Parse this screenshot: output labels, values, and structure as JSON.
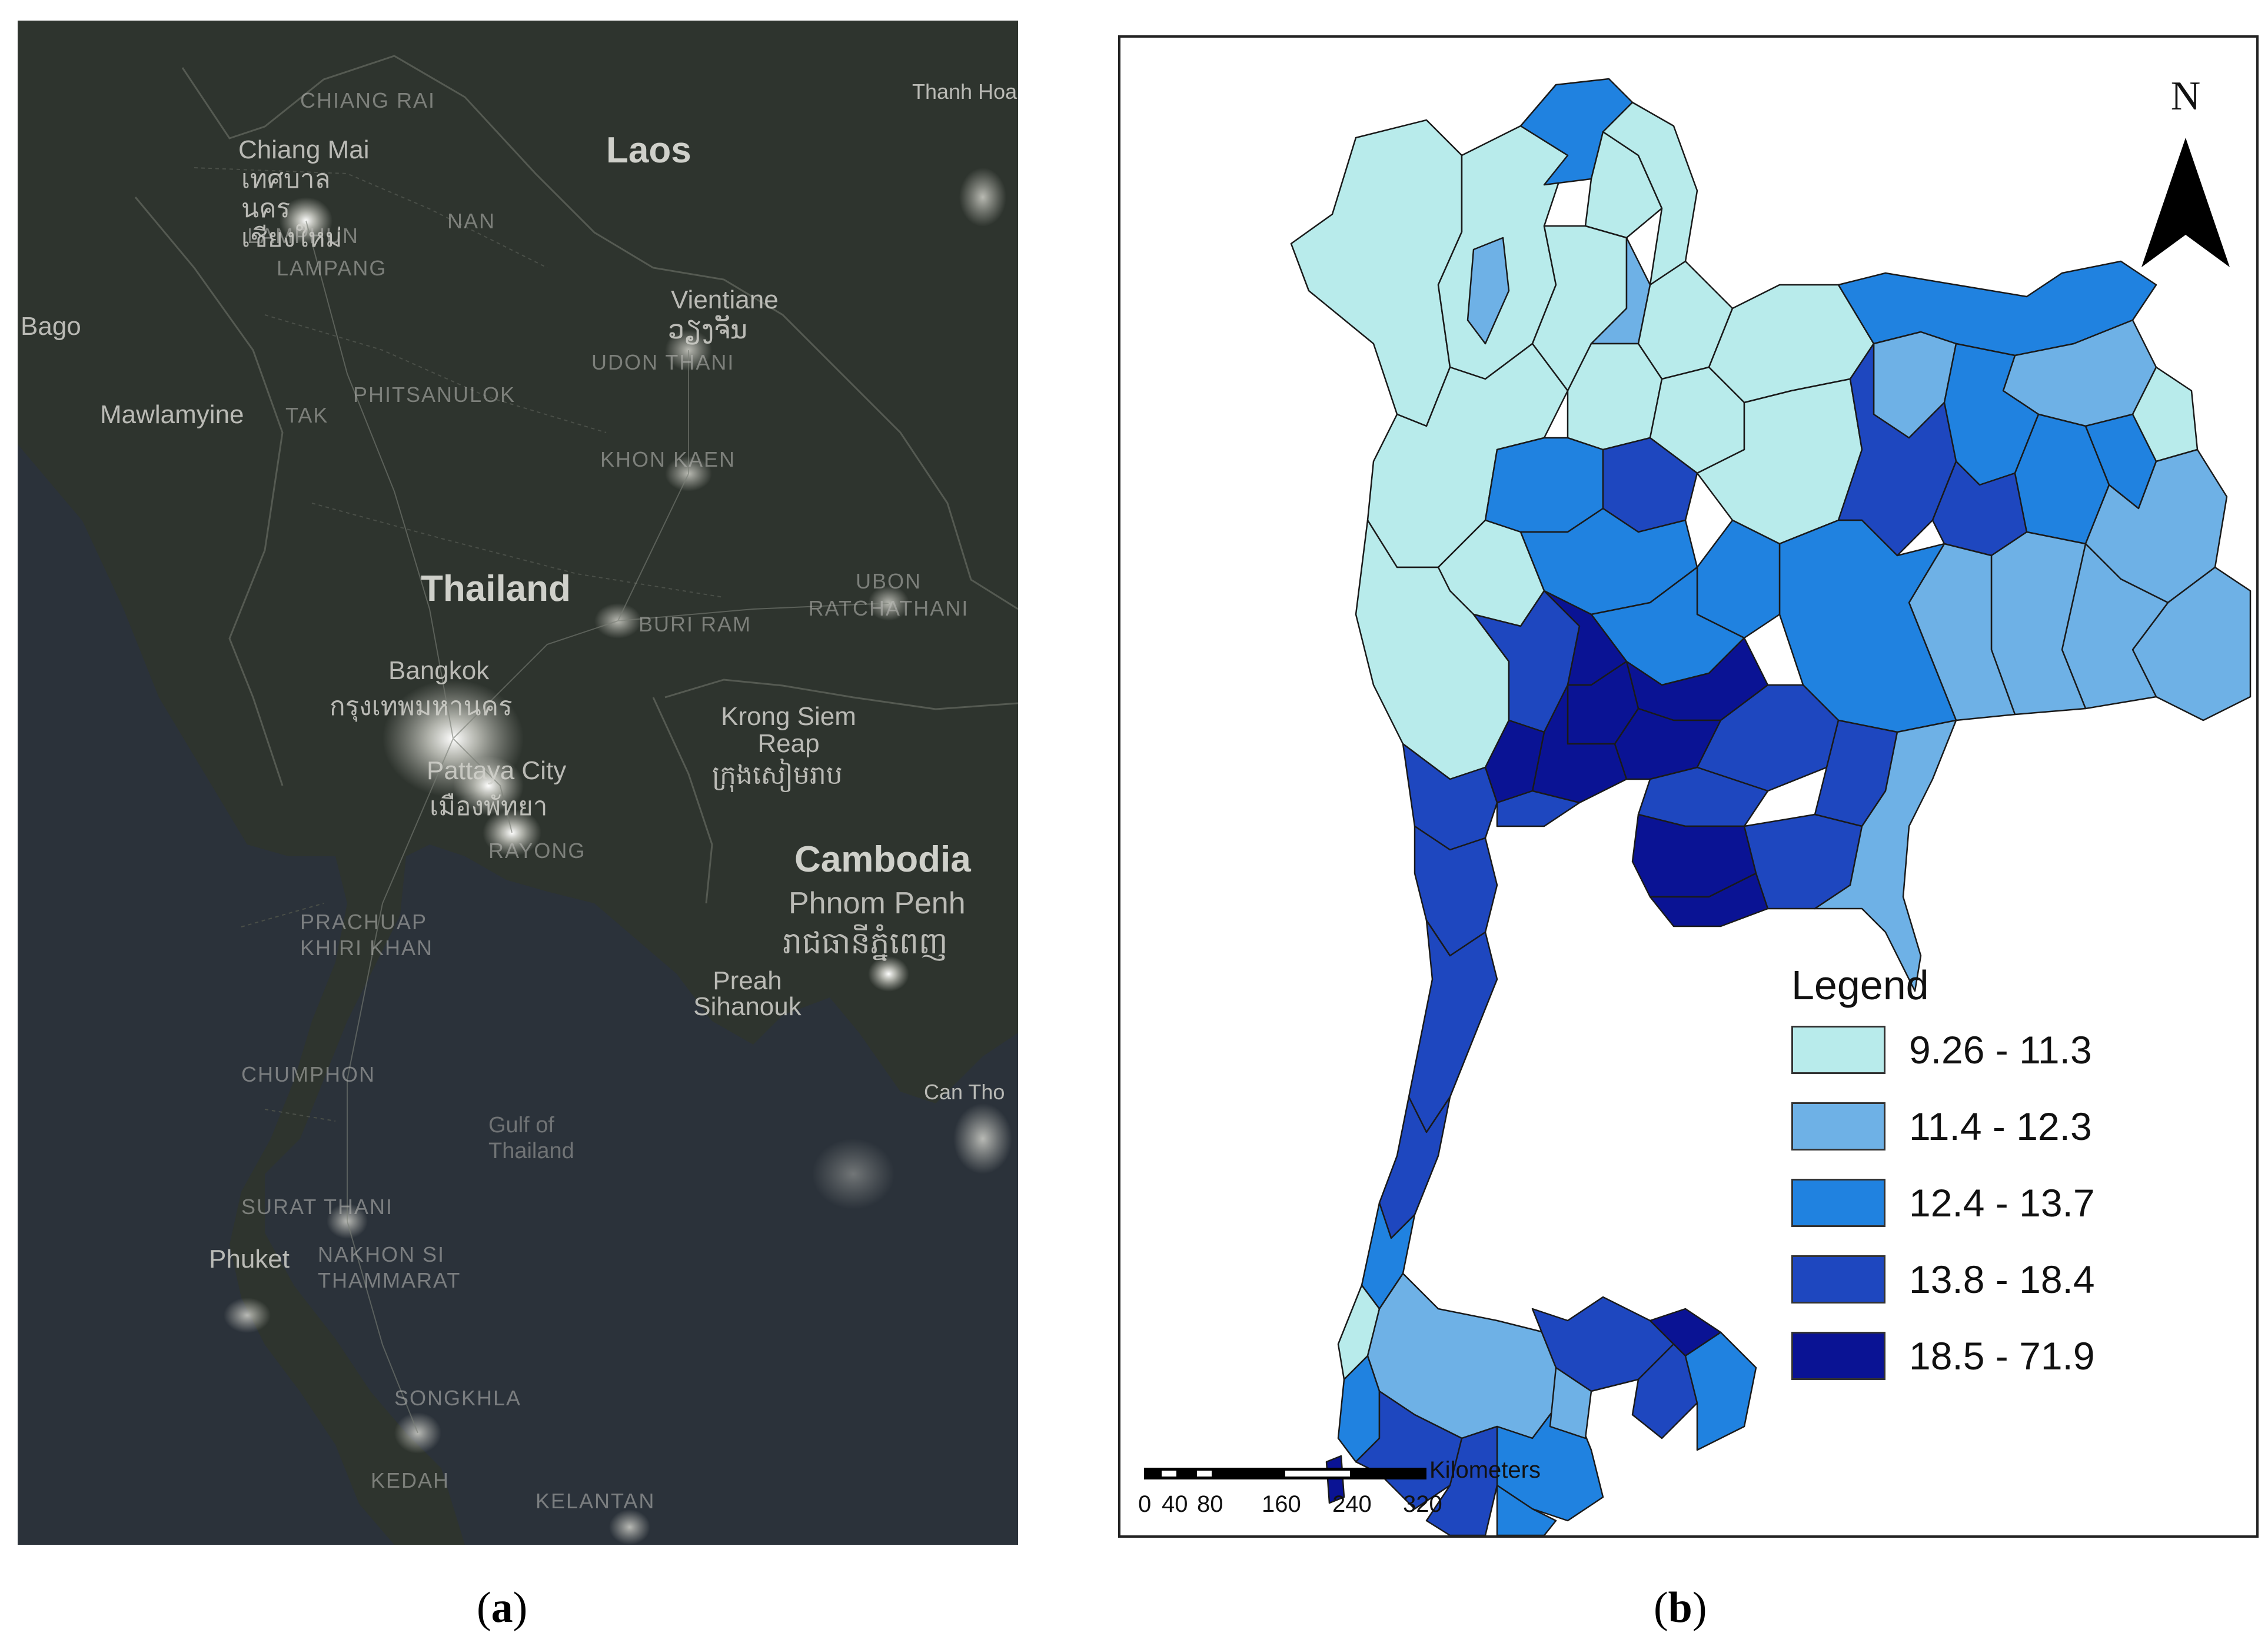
{
  "panel_a": {
    "caption_letter": "a",
    "labels": {
      "laos": "Laos",
      "thailand": "Thailand",
      "cambodia": "Cambodia",
      "chiang_mai": "Chiang Mai",
      "chiang_mai_th": "เทศบาลนคร เชียงใหม่",
      "vientiane": "Vientiane",
      "vientiane_lo": "ວຽງຈັນ",
      "bangkok": "Bangkok",
      "bangkok_th": "กรุงเทพมหานคร",
      "pattaya": "Pattaya City",
      "pattaya_th": "เมืองพัทยา",
      "krong_siem_reap": "Krong Siem Reap",
      "siem_reap_kh": "ក្រុងសៀមរាប",
      "phnom_penh": "Phnom Penh",
      "phnom_penh_kh": "រាជធានីភ្នំពេញ",
      "preah_sihanouk": "Preah Sihanouk",
      "mawlamyine": "Mawlamyine",
      "bago": "Bago",
      "thanh_hoa": "Thanh Hoa",
      "gulf": "Gulf of Thailand",
      "phuket": "Phuket",
      "can_tho": "Can Tho",
      "chiang_rai": "CHIANG RAI",
      "nan": "NAN",
      "lamphun": "LAMPHUN",
      "lampang": "LAMPANG",
      "tak": "TAK",
      "phitsanulok": "PHITSANULOK",
      "udon_thani": "UDON THANI",
      "khon_kaen": "KHON KAEN",
      "ubon": "UBON RATCHATHANI",
      "buriram": "BURI RAM",
      "rayong": "RAYONG",
      "prachuap": "PRACHUAP KHIRI KHAN",
      "chumphon": "CHUMPHON",
      "surat_thani": "SURAT THANI",
      "nakhon_si": "NAKHON SI THAMMARAT",
      "songkhla": "SONGKHLA",
      "kedah": "KEDAH",
      "kelantan": "KELANTAN"
    }
  },
  "panel_b": {
    "caption_letter": "b",
    "north_label": "N",
    "legend": {
      "title": "Legend",
      "classes": [
        {
          "label": "9.26 - 11.3",
          "color": "#b8ebeb"
        },
        {
          "label": "11.4 - 12.3",
          "color": "#6eb1e6"
        },
        {
          "label": "12.4 - 13.7",
          "color": "#2082e0"
        },
        {
          "label": "13.8 - 18.4",
          "color": "#1e47bf"
        },
        {
          "label": "18.5 - 71.9",
          "color": "#0a1394"
        }
      ]
    },
    "scale_bar": {
      "unit": "Kilometers",
      "ticks": [
        "0",
        "40",
        "80",
        "160",
        "240",
        "320"
      ]
    }
  }
}
